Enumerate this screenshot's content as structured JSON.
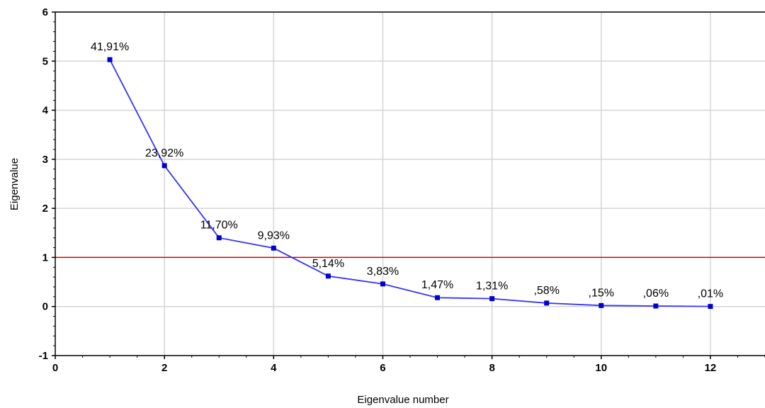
{
  "chart_data": {
    "type": "line",
    "title": "",
    "xlabel": "Eigenvalue number",
    "ylabel": "Eigenvalue",
    "xlim": [
      0,
      13
    ],
    "ylim": [
      -1,
      6
    ],
    "xticks": [
      0,
      2,
      4,
      6,
      8,
      10,
      12
    ],
    "yticks": [
      -1,
      0,
      1,
      2,
      3,
      4,
      5,
      6
    ],
    "grid": true,
    "series": [
      {
        "x": [
          1,
          2,
          3,
          4,
          5,
          6,
          7,
          8,
          9,
          10,
          11,
          12
        ],
        "y": [
          5.03,
          2.87,
          1.4,
          1.19,
          0.62,
          0.46,
          0.18,
          0.16,
          0.07,
          0.02,
          0.01,
          0.001
        ],
        "labels": [
          "41,91%",
          "23,92%",
          "11,70%",
          "9,93%",
          "5,14%",
          "3,83%",
          "1,47%",
          "1,31%",
          ",58%",
          ",15%",
          ",06%",
          ",01%"
        ],
        "color": "#3333ff",
        "marker_color": "#0000cc"
      }
    ],
    "reference_line": {
      "y": 1,
      "color": "#e00000"
    }
  }
}
